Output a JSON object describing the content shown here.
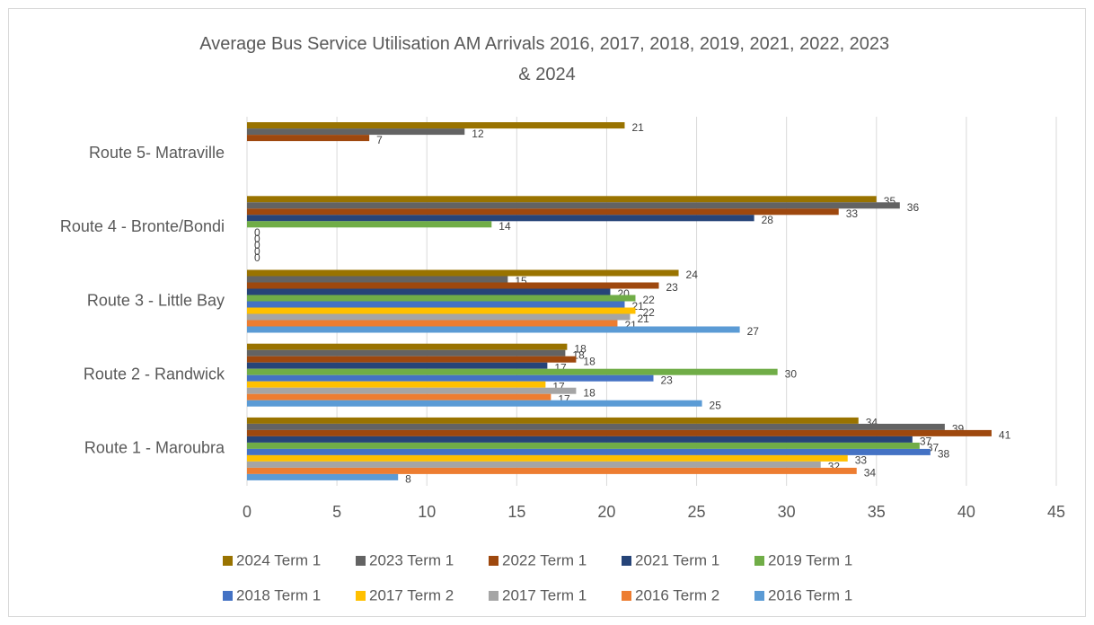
{
  "chart_data": {
    "type": "bar",
    "orientation": "horizontal",
    "title": "Average Bus Service Utilisation AM Arrivals 2016, 2017, 2018, 2019, 2021, 2022, 2023 & 2024",
    "categories": [
      "Route 1 - Maroubra",
      "Route 2 - Randwick",
      "Route 3 - Little Bay",
      "Route 4 - Bronte/Bondi",
      "Route 5- Matraville"
    ],
    "series": [
      {
        "name": "2024 Term 1",
        "color": "#997300",
        "values": [
          34.0,
          17.8,
          24.0,
          35.0,
          21.0
        ],
        "value_labels": [
          34,
          18,
          24,
          35,
          21
        ]
      },
      {
        "name": "2023 Term 1",
        "color": "#636363",
        "values": [
          38.8,
          17.7,
          14.5,
          36.3,
          12.1
        ],
        "value_labels": [
          39,
          18,
          15,
          36,
          12
        ]
      },
      {
        "name": "2022 Term 1",
        "color": "#9e480e",
        "values": [
          41.4,
          18.3,
          22.9,
          32.9,
          6.8
        ],
        "value_labels": [
          41,
          18,
          23,
          33,
          7
        ]
      },
      {
        "name": "2021 Term 1",
        "color": "#264478",
        "values": [
          37.0,
          16.7,
          20.2,
          28.2,
          null
        ],
        "value_labels": [
          37,
          17,
          20,
          28,
          null
        ]
      },
      {
        "name": "2019 Term 1",
        "color": "#70ad47",
        "values": [
          37.4,
          29.5,
          21.6,
          13.6,
          null
        ],
        "value_labels": [
          37,
          30,
          22,
          14,
          null
        ]
      },
      {
        "name": "2018 Term 1",
        "color": "#4472c4",
        "values": [
          38.0,
          22.6,
          21.0,
          0,
          null
        ],
        "value_labels": [
          38,
          23,
          21,
          0,
          null
        ]
      },
      {
        "name": "2017 Term 2",
        "color": "#ffc000",
        "values": [
          33.4,
          16.6,
          21.6,
          0,
          null
        ],
        "value_labels": [
          33,
          17,
          22,
          0,
          null
        ]
      },
      {
        "name": "2017 Term 1",
        "color": "#a5a5a5",
        "values": [
          31.9,
          18.3,
          21.3,
          0,
          null
        ],
        "value_labels": [
          32,
          18,
          21,
          0,
          null
        ]
      },
      {
        "name": "2016 Term 2",
        "color": "#ed7d31",
        "values": [
          33.9,
          16.9,
          20.6,
          0,
          null
        ],
        "value_labels": [
          34,
          17,
          21,
          0,
          null
        ]
      },
      {
        "name": "2016 Term 1",
        "color": "#5b9bd5",
        "values": [
          8.4,
          25.3,
          27.4,
          0,
          null
        ],
        "value_labels": [
          8,
          25,
          27,
          0,
          null
        ]
      }
    ],
    "xlim": [
      0,
      45
    ],
    "xticks": [
      0,
      5,
      10,
      15,
      20,
      25,
      30,
      35,
      40,
      45
    ],
    "grid": true,
    "legend": "bottom"
  }
}
